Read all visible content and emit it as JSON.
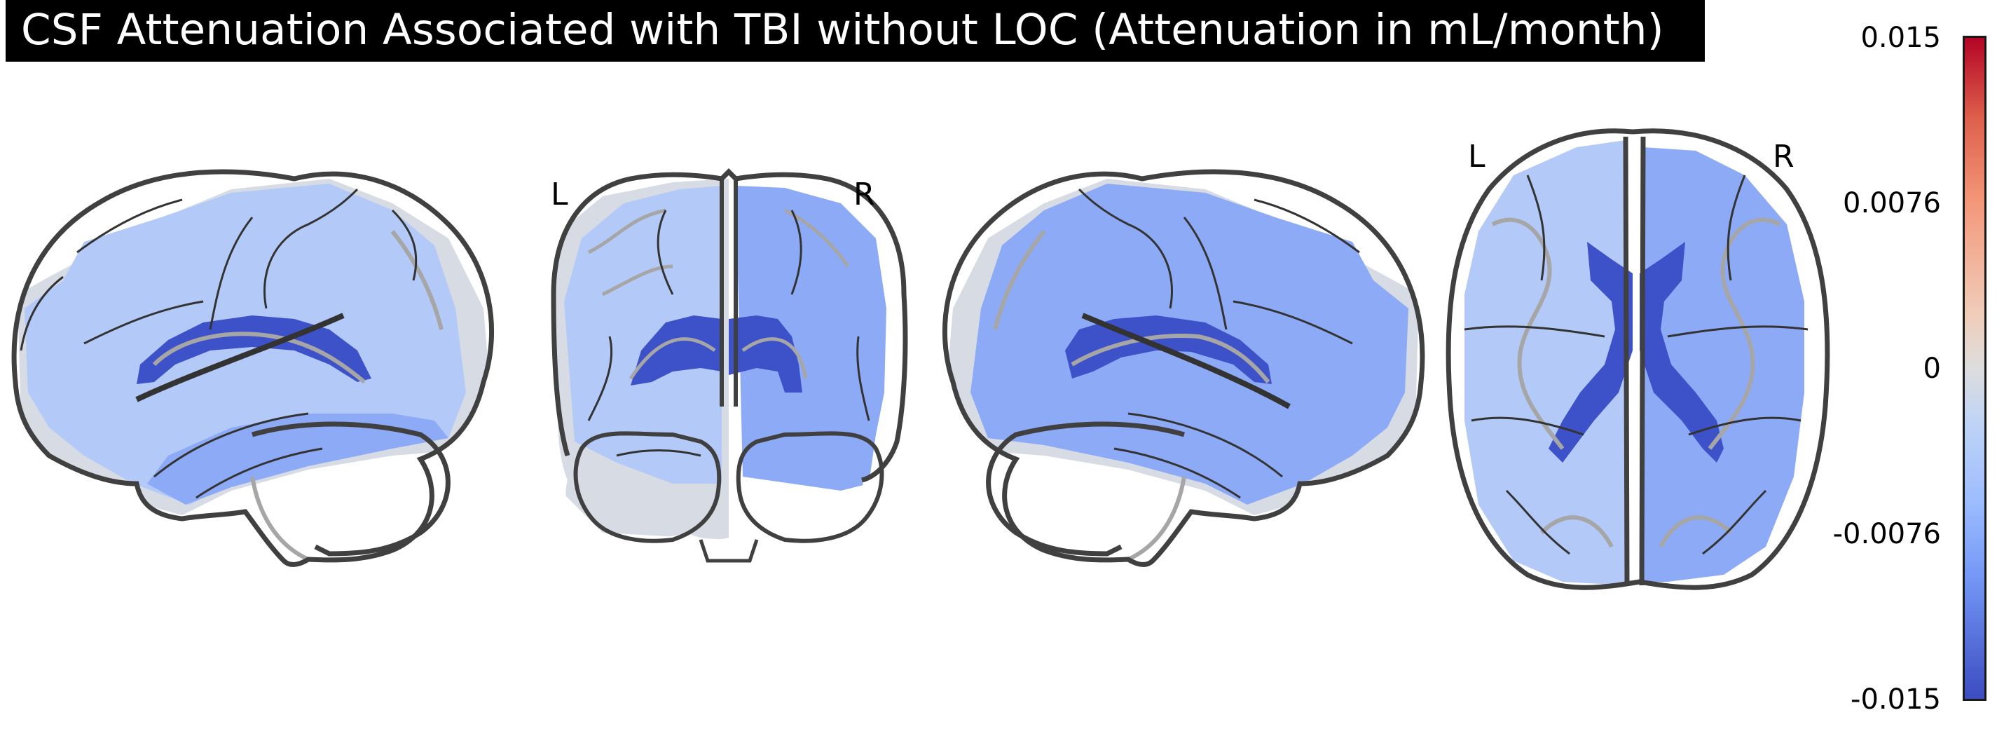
{
  "title": "CSF Attenuation Associated with TBI without LOC (Attenuation in mL/month)",
  "views": {
    "sagittal_left": "sagittal-left",
    "coronal": "coronal",
    "sagittal_right": "sagittal-right",
    "axial": "axial"
  },
  "orientation_labels": {
    "coronal_left": "L",
    "coronal_right": "R",
    "axial_left": "L",
    "axial_right": "R"
  },
  "colorbar": {
    "colormap": "coolwarm",
    "range": [
      -0.015,
      0.015
    ],
    "ticks": [
      "0.015",
      "0.0076",
      "0",
      "-0.0076",
      "-0.015"
    ],
    "colors": {
      "low": "#3b4cc0",
      "mid": "#dddddd",
      "high": "#b40426"
    }
  },
  "overlay_colors": {
    "strong_negative": "#3d51c8",
    "moderate_negative": "#8caaf5",
    "weak_negative": "#b3c9f8",
    "near_zero": "#d6dbe4",
    "outline": "#404040",
    "sulci": "#a6a6a6"
  }
}
